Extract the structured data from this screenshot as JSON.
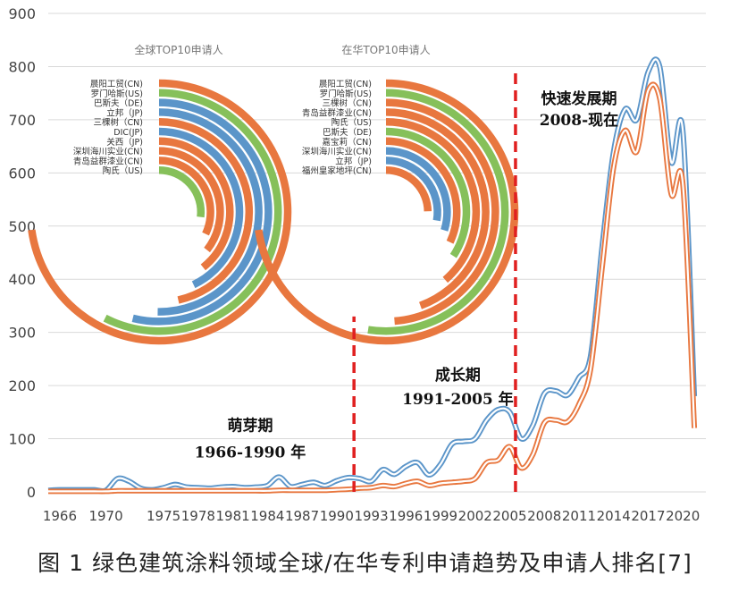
{
  "caption": "图 1 绿色建筑涂料领域全球/在华专利申请趋势及申请人排名[7]",
  "colors": {
    "blue": "#5b95c9",
    "orange": "#e8773f",
    "green": "#86c05a",
    "red_dash": "#e02020",
    "grid": "#d9d9d9"
  },
  "chart_data": [
    {
      "type": "line",
      "ylim": [
        0,
        900
      ],
      "yticks": [
        0,
        100,
        200,
        300,
        400,
        500,
        600,
        700,
        800,
        900
      ],
      "xlim": [
        1965,
        2022
      ],
      "xtick_labels": [
        "1966",
        "1970",
        "1975",
        "1978",
        "1981",
        "1984",
        "1987",
        "1990",
        "1993",
        "1996",
        "1999",
        "2002",
        "2005",
        "2008",
        "2011",
        "2014",
        "2017",
        "2020"
      ],
      "grid": "horizontal",
      "series": [
        {
          "color": "blue",
          "x": [
            1965,
            1966,
            1967,
            1968,
            1969,
            1970,
            1971,
            1972,
            1973,
            1974,
            1975,
            1976,
            1977,
            1978,
            1979,
            1980,
            1981,
            1982,
            1983,
            1984,
            1985,
            1986,
            1987,
            1988,
            1989,
            1990,
            1991,
            1992,
            1993,
            1994,
            1995,
            1996,
            1997,
            1998,
            1999,
            2000,
            2001,
            2002,
            2003,
            2004,
            2005,
            2006,
            2007,
            2008,
            2009,
            2010,
            2011,
            2012,
            2013,
            2014,
            2015,
            2016,
            2017,
            2018,
            2019,
            2020,
            2021
          ],
          "values": [
            3,
            4,
            4,
            4,
            4,
            3,
            25,
            20,
            7,
            4,
            8,
            14,
            9,
            8,
            7,
            9,
            10,
            8,
            9,
            12,
            28,
            10,
            14,
            18,
            12,
            21,
            27,
            25,
            20,
            42,
            33,
            48,
            55,
            32,
            52,
            90,
            95,
            100,
            135,
            155,
            150,
            100,
            125,
            185,
            190,
            182,
            215,
            255,
            460,
            640,
            720,
            700,
            790,
            800,
            620,
            680,
            180
          ]
        },
        {
          "color": "orange",
          "x": [
            1965,
            1966,
            1967,
            1968,
            1969,
            1970,
            1971,
            1972,
            1973,
            1974,
            1975,
            1976,
            1977,
            1978,
            1979,
            1980,
            1981,
            1982,
            1983,
            1984,
            1985,
            1986,
            1987,
            1988,
            1989,
            1990,
            1991,
            1992,
            1993,
            1994,
            1995,
            1996,
            1997,
            1998,
            1999,
            2000,
            2001,
            2002,
            2003,
            2004,
            2005,
            2006,
            2007,
            2008,
            2009,
            2010,
            2011,
            2012,
            2013,
            2014,
            2015,
            2016,
            2017,
            2018,
            2019,
            2020,
            2021
          ],
          "values": [
            1,
            1,
            1,
            1,
            1,
            1,
            2,
            2,
            2,
            2,
            2,
            2,
            2,
            2,
            2,
            2,
            2,
            2,
            2,
            2,
            3,
            3,
            3,
            3,
            3,
            4,
            5,
            7,
            8,
            12,
            10,
            16,
            20,
            12,
            16,
            18,
            20,
            25,
            55,
            60,
            85,
            45,
            70,
            130,
            135,
            132,
            165,
            230,
            420,
            610,
            680,
            640,
            755,
            740,
            560,
            580,
            120
          ]
        }
      ],
      "annotations": [
        {
          "text": "萌芽期",
          "x": 1982.5,
          "y": 115
        },
        {
          "text": "1966-1990 年",
          "x": 1982.5,
          "y": 65
        },
        {
          "text": "成长期",
          "x": 2000.5,
          "y": 210
        },
        {
          "text": "1991-2005 年",
          "x": 2000.5,
          "y": 165
        },
        {
          "text": "快速发展期",
          "x": 2011,
          "y": 730
        },
        {
          "text": "2008-现在",
          "x": 2011,
          "y": 690
        }
      ],
      "dividers": [
        {
          "x": 1991.5,
          "ylim": [
            0,
            330
          ]
        },
        {
          "x": 2005.5,
          "ylim": [
            0,
            790
          ]
        }
      ]
    },
    {
      "type": "radial-bar",
      "title": "全球TOP10申请人",
      "labels": [
        "晨阳工贸(CN)",
        "罗门哈斯(US)",
        "巴斯夫（DE)",
        "立邦（JP)",
        "三棵树（CN)",
        "DIC(JP)",
        "关西（JP)",
        "深圳海川实业(CN)",
        "青岛益群漆业(CN)",
        "陶氏（US)"
      ],
      "values": [
        100,
        79,
        74,
        69,
        64,
        59,
        54,
        49,
        44,
        37
      ],
      "colors": [
        "orange",
        "green",
        "blue",
        "blue",
        "orange",
        "blue",
        "orange",
        "orange",
        "orange",
        "green"
      ]
    },
    {
      "type": "radial-bar",
      "title": "在华TOP10申请人",
      "labels": [
        "晨阳工贸(CN)",
        "罗门哈斯(US)",
        "三棵树（CN)",
        "青岛益群漆业(CN)",
        "陶氏（US)",
        "巴斯夫（DE)",
        "嘉宝莉（CN)",
        "深圳海川实业(CN)",
        "立邦（JP)",
        "福州皇家地坪(CN)"
      ],
      "values": [
        100,
        72,
        67,
        61,
        53,
        47,
        44,
        41,
        38,
        34
      ],
      "colors": [
        "orange",
        "green",
        "orange",
        "orange",
        "orange",
        "green",
        "orange",
        "blue",
        "blue",
        "orange"
      ]
    }
  ]
}
